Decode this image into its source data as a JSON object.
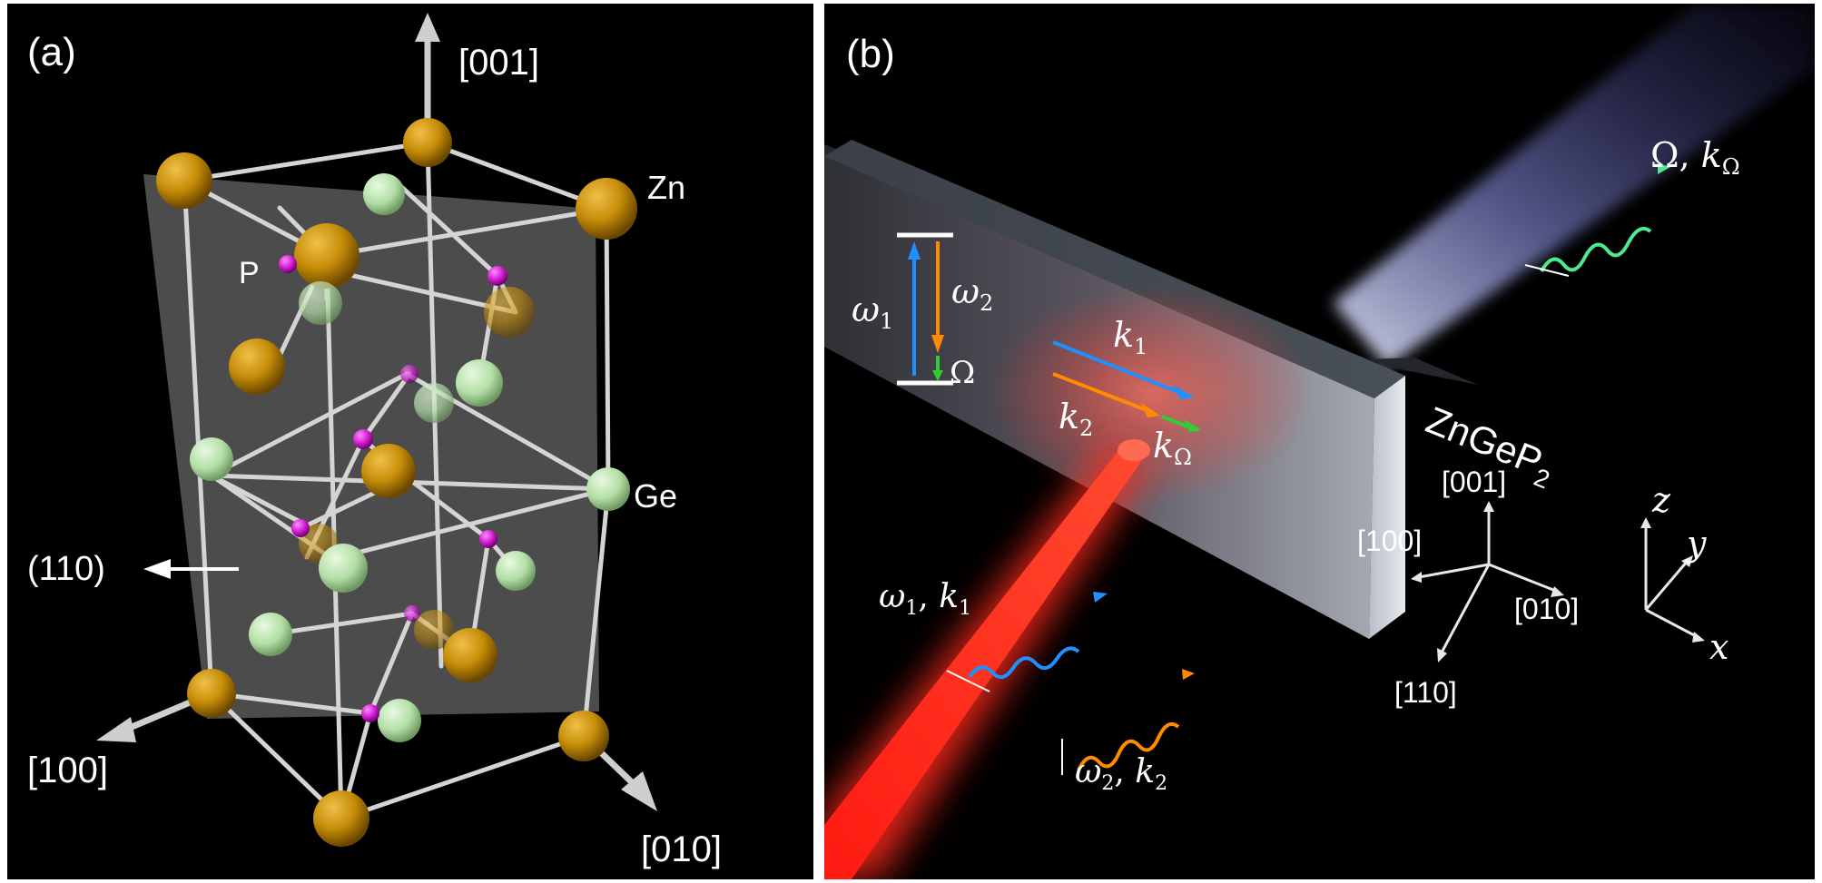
{
  "panel_a": {
    "label": "(a)",
    "axis_001": "[001]",
    "axis_100": "[100]",
    "axis_010": "[010]",
    "plane": "(110)",
    "atoms": {
      "zn": "Zn",
      "ge": "Ge",
      "p": "P"
    },
    "colors": {
      "zn": "#c8900a",
      "ge": "#b8e4ae",
      "p": "#d01ad0",
      "bond": "#d8d8d8",
      "plane": "#707070"
    }
  },
  "panel_b": {
    "label": "(b)",
    "crystal": "ZnGeP",
    "crystal_sub": "2",
    "omega1": "ω",
    "omega1_sub": "1",
    "omega2": "ω",
    "omega2_sub": "2",
    "Omega": "Ω",
    "k1": "k",
    "k1_sub": "1",
    "k2": "k",
    "k2_sub": "2",
    "kOmega": "k",
    "kOmega_sub": "Ω",
    "beam1": "ω",
    "beam1_sub": "1",
    "beam1_sep": ", ",
    "beam1_k": "k",
    "beam1_k_sub": "1",
    "beam2": "ω",
    "beam2_sub": "2",
    "beam2_sep": ", ",
    "beam2_k": "k",
    "beam2_k_sub": "2",
    "thz": "Ω, ",
    "thz_k": "k",
    "thz_k_sub": "Ω",
    "dir_001": "[001]",
    "dir_100": "[100]",
    "dir_010": "[010]",
    "dir_110": "[110]",
    "axis_x": "x",
    "axis_y": "y",
    "axis_z": "z",
    "colors": {
      "blue": "#1e90ff",
      "orange": "#ff8c00",
      "green": "#32cd32",
      "red": "#ff2a1a",
      "thz_glow": "#aab0ff"
    }
  }
}
